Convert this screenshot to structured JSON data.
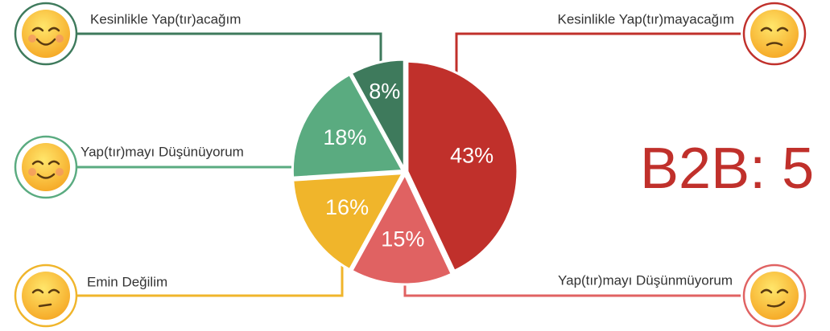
{
  "chart_data": {
    "type": "pie",
    "categories": [
      "Kesinlikle Yap(tır)mayacağım",
      "Yap(tır)mayı Düşünmüyorum",
      "Emin Değilim",
      "Yap(tır)mayı Düşünüyorum",
      "Kesinlikle Yap(tır)acağım"
    ],
    "values": [
      43,
      15,
      16,
      18,
      8
    ],
    "value_labels": [
      "43%",
      "15%",
      "16%",
      "18%",
      "8%"
    ],
    "colors": [
      "#c0302b",
      "#e06262",
      "#f0b52b",
      "#5aab80",
      "#3e7a5c"
    ],
    "annotation": "B2B: 5"
  }
}
